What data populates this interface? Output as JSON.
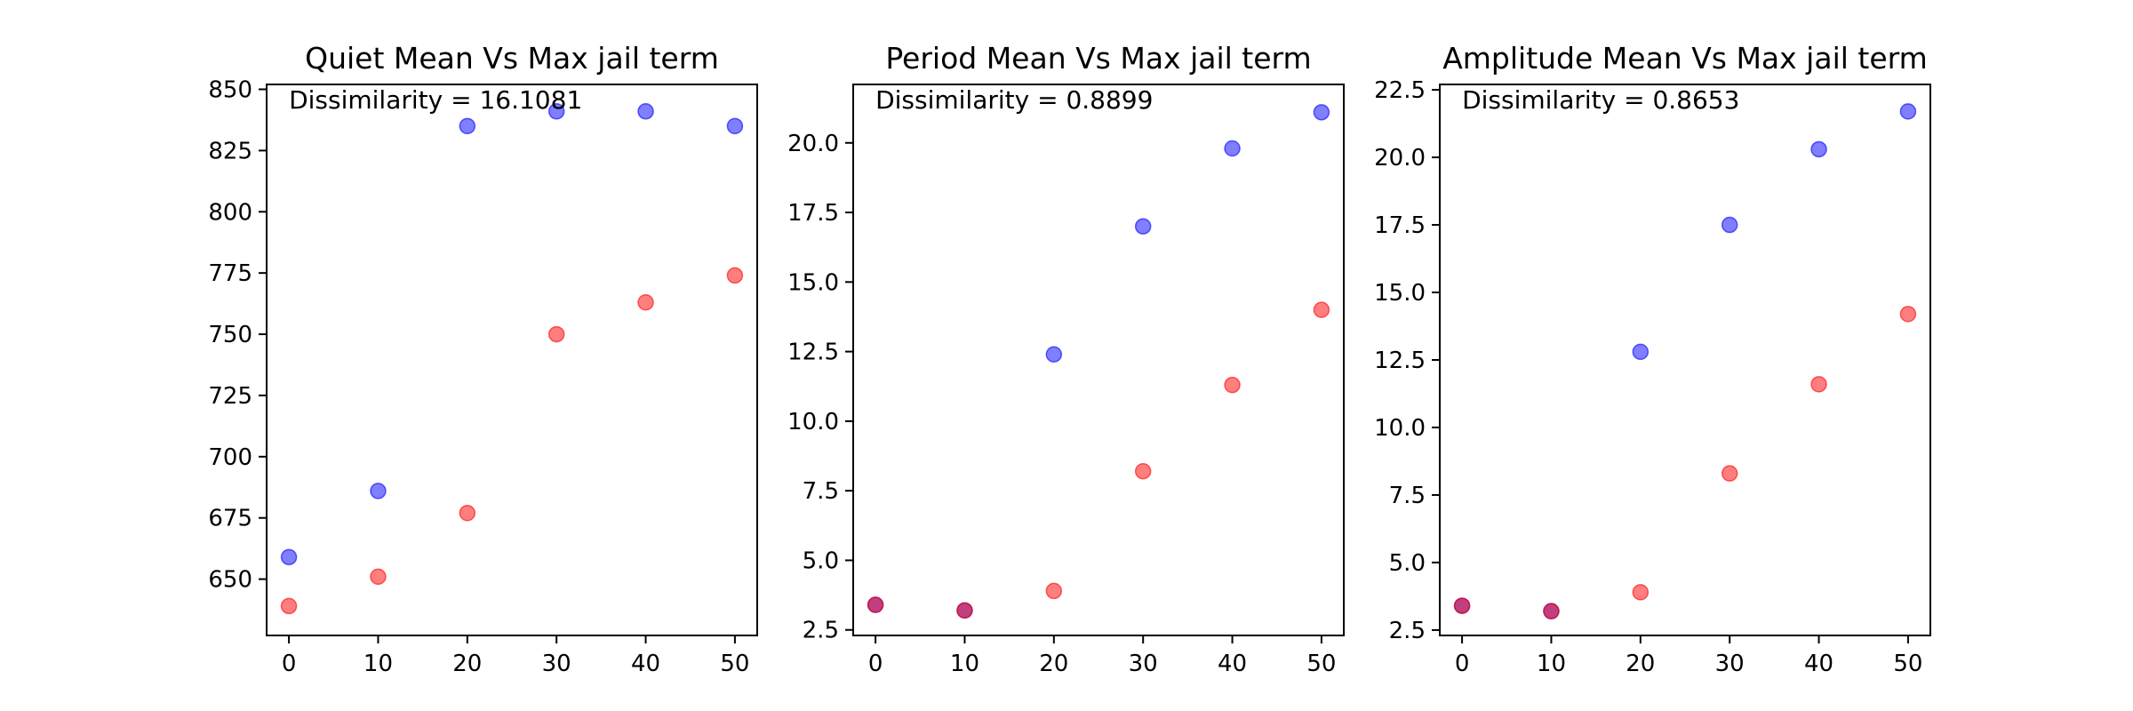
{
  "chart_data": [
    {
      "type": "scatter",
      "title": "Quiet Mean Vs Max jail term",
      "annotation": "Dissimilarity = 16.1081",
      "xlim": [
        -2.5,
        52.5
      ],
      "ylim": [
        627,
        852
      ],
      "xticks": [
        0,
        10,
        20,
        30,
        40,
        50
      ],
      "yticks": [
        650,
        675,
        700,
        725,
        750,
        775,
        800,
        825,
        850
      ],
      "tick_decimals": 0,
      "series": [
        {
          "color": "#0000ff",
          "x": [
            0,
            10,
            20,
            30,
            40,
            50
          ],
          "y": [
            659,
            686,
            835,
            841,
            841,
            835
          ]
        },
        {
          "color": "#ff0000",
          "x": [
            0,
            10,
            20,
            30,
            40,
            50
          ],
          "y": [
            639,
            651,
            677,
            750,
            763,
            774
          ]
        }
      ]
    },
    {
      "type": "scatter",
      "title": "Period Mean Vs Max jail term",
      "annotation": "Dissimilarity = 0.8899",
      "xlim": [
        -2.5,
        52.5
      ],
      "ylim": [
        2.3,
        22.1
      ],
      "xticks": [
        0,
        10,
        20,
        30,
        40,
        50
      ],
      "yticks": [
        2.5,
        5.0,
        7.5,
        10.0,
        12.5,
        15.0,
        17.5,
        20.0
      ],
      "tick_decimals": 1,
      "series": [
        {
          "color": "#0000ff",
          "x": [
            0,
            10,
            20,
            30,
            40,
            50
          ],
          "y": [
            3.4,
            3.2,
            12.4,
            17.0,
            19.8,
            21.1
          ]
        },
        {
          "color": "#ff0000",
          "x": [
            0,
            10,
            20,
            30,
            40,
            50
          ],
          "y": [
            3.4,
            3.2,
            3.9,
            8.2,
            11.3,
            14.0
          ]
        }
      ]
    },
    {
      "type": "scatter",
      "title": "Amplitude Mean Vs Max jail term",
      "annotation": "Dissimilarity = 0.8653",
      "xlim": [
        -2.5,
        52.5
      ],
      "ylim": [
        2.3,
        22.7
      ],
      "xticks": [
        0,
        10,
        20,
        30,
        40,
        50
      ],
      "yticks": [
        2.5,
        5.0,
        7.5,
        10.0,
        12.5,
        15.0,
        17.5,
        20.0,
        22.5
      ],
      "tick_decimals": 1,
      "series": [
        {
          "color": "#0000ff",
          "x": [
            0,
            10,
            20,
            30,
            40,
            50
          ],
          "y": [
            3.4,
            3.2,
            12.8,
            17.5,
            20.3,
            21.7
          ]
        },
        {
          "color": "#ff0000",
          "x": [
            0,
            10,
            20,
            30,
            40,
            50
          ],
          "y": [
            3.4,
            3.2,
            3.9,
            8.3,
            11.6,
            14.2
          ]
        }
      ]
    }
  ]
}
